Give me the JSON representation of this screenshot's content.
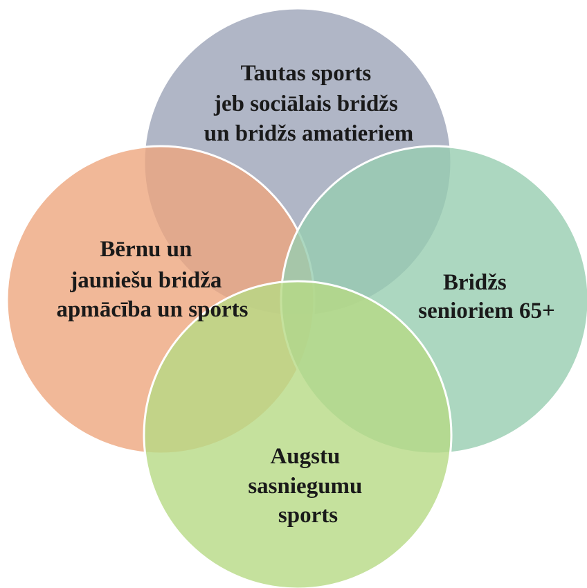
{
  "nodes": [
    {
      "lines": [
        "Tautas sports",
        "jeb sociālais bridžs",
        "un bridžs amatieriem"
      ]
    },
    {
      "lines": [
        "Bērnu un",
        "jauniešu bridža",
        "apmācība un sports"
      ]
    },
    {
      "lines": [
        "Bridžs",
        "senioriem 65+"
      ]
    },
    {
      "lines": [
        "Augstu",
        "sasniegumu",
        "sports"
      ]
    }
  ]
}
